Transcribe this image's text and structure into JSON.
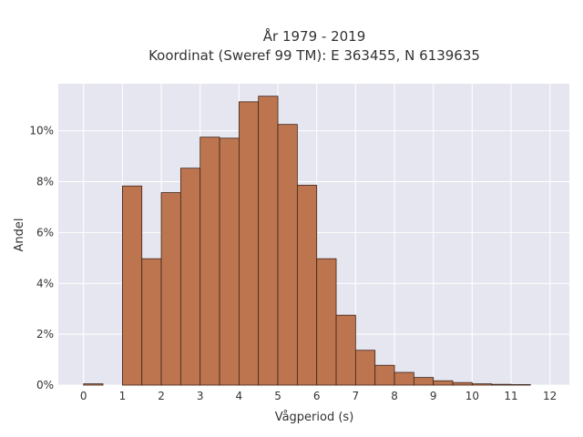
{
  "chart_data": {
    "type": "bar",
    "title_lines": [
      "År 1979 - 2019",
      "Koordinat (Sweref 99 TM): E 363455, N 6139635"
    ],
    "xlabel": "Vågperiod (s)",
    "ylabel": "Andel",
    "xlim": [
      -0.65,
      12.5
    ],
    "ylim": [
      0,
      0.1185
    ],
    "x_ticks": [
      0,
      1,
      2,
      3,
      4,
      5,
      6,
      7,
      8,
      9,
      10,
      11,
      12
    ],
    "y_ticks": [
      0,
      0.02,
      0.04,
      0.06,
      0.08,
      0.1
    ],
    "y_tick_labels": [
      "0%",
      "2%",
      "4%",
      "6%",
      "8%",
      "10%"
    ],
    "bin_width": 0.5,
    "bins": [
      {
        "x0": 0.0,
        "value": 0.0005
      },
      {
        "x0": 1.0,
        "value": 0.0783
      },
      {
        "x0": 1.5,
        "value": 0.0497
      },
      {
        "x0": 2.0,
        "value": 0.0757
      },
      {
        "x0": 2.5,
        "value": 0.0853
      },
      {
        "x0": 3.0,
        "value": 0.0975
      },
      {
        "x0": 3.5,
        "value": 0.0971
      },
      {
        "x0": 4.0,
        "value": 0.1114
      },
      {
        "x0": 4.5,
        "value": 0.1136
      },
      {
        "x0": 5.0,
        "value": 0.1025
      },
      {
        "x0": 5.5,
        "value": 0.0786
      },
      {
        "x0": 6.0,
        "value": 0.0497
      },
      {
        "x0": 6.5,
        "value": 0.0275
      },
      {
        "x0": 7.0,
        "value": 0.0137
      },
      {
        "x0": 7.5,
        "value": 0.0078
      },
      {
        "x0": 8.0,
        "value": 0.005
      },
      {
        "x0": 8.5,
        "value": 0.003
      },
      {
        "x0": 9.0,
        "value": 0.0017
      },
      {
        "x0": 9.5,
        "value": 0.001
      },
      {
        "x0": 10.0,
        "value": 0.0005
      },
      {
        "x0": 10.5,
        "value": 0.0003
      },
      {
        "x0": 11.0,
        "value": 0.0002
      }
    ],
    "grid": true,
    "colors": {
      "bar_fill": "#bd7550",
      "bar_stroke": "#3d2418",
      "plot_bg": "#e6e6f0",
      "grid": "#ffffff"
    }
  }
}
